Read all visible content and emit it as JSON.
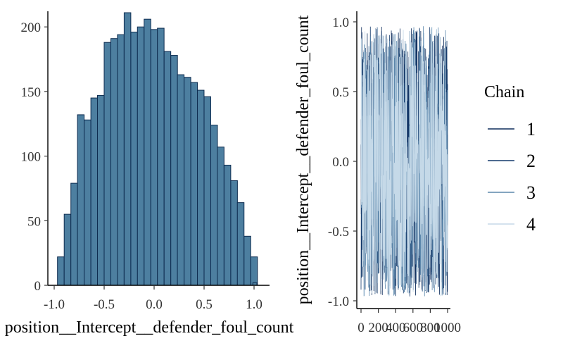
{
  "chart_data": [
    {
      "type": "bar",
      "subtype": "histogram",
      "xlabel": "position__Intercept__defender_foul_count",
      "ylabel": "",
      "xlim": [
        -1.1,
        1.15
      ],
      "ylim": [
        0,
        212
      ],
      "x_ticks": [
        -1.0,
        -0.5,
        0.0,
        0.5,
        1.0
      ],
      "x_tick_labels": [
        "-1.0",
        "-0.5",
        "0.0",
        "0.5",
        "1.0"
      ],
      "y_ticks": [
        0,
        50,
        100,
        150,
        200
      ],
      "y_tick_labels": [
        "0",
        "50",
        "100",
        "150",
        "200"
      ],
      "bin_width": 0.0667,
      "bin_starts": [
        -0.967,
        -0.9,
        -0.833,
        -0.767,
        -0.7,
        -0.633,
        -0.567,
        -0.5,
        -0.433,
        -0.367,
        -0.3,
        -0.233,
        -0.167,
        -0.1,
        -0.033,
        0.033,
        0.1,
        0.167,
        0.233,
        0.3,
        0.367,
        0.433,
        0.5,
        0.567,
        0.633,
        0.7,
        0.767,
        0.833,
        0.9,
        0.967
      ],
      "values": [
        22,
        55,
        79,
        132,
        128,
        145,
        147,
        188,
        191,
        194,
        211,
        196,
        200,
        206,
        198,
        199,
        181,
        178,
        163,
        161,
        157,
        151,
        146,
        124,
        107,
        93,
        81,
        64,
        38,
        22
      ],
      "last_bin_extra": {
        "start": 0.967,
        "value": 2
      },
      "colors": {
        "fill": "#4d7fa0",
        "edge": "#0d2b4f"
      },
      "grid": false
    },
    {
      "type": "line",
      "subtype": "trace",
      "xlabel": "",
      "ylabel": "position__Intercept__defender_foul_count",
      "xlim": [
        0,
        1000
      ],
      "ylim": [
        -1.0,
        1.0
      ],
      "x_ticks": [
        0,
        200,
        400,
        600,
        800,
        1000
      ],
      "x_tick_labels": [
        "0",
        "200",
        "400",
        "600",
        "800",
        "1000"
      ],
      "y_ticks": [
        -1.0,
        -0.5,
        0.0,
        0.5,
        1.0
      ],
      "y_tick_labels": [
        "-1.0",
        "-0.5",
        "0.0",
        "0.5",
        "1.0"
      ],
      "legend_title": "Chain",
      "legend_position": "right",
      "series": [
        {
          "name": "1",
          "color": "#0f2d5c"
        },
        {
          "name": "2",
          "color": "#143a6b"
        },
        {
          "name": "3",
          "color": "#5b87ac"
        },
        {
          "name": "4",
          "color": "#c5d9e8"
        }
      ],
      "value_range": [
        -0.97,
        0.97
      ],
      "grid": false
    }
  ]
}
